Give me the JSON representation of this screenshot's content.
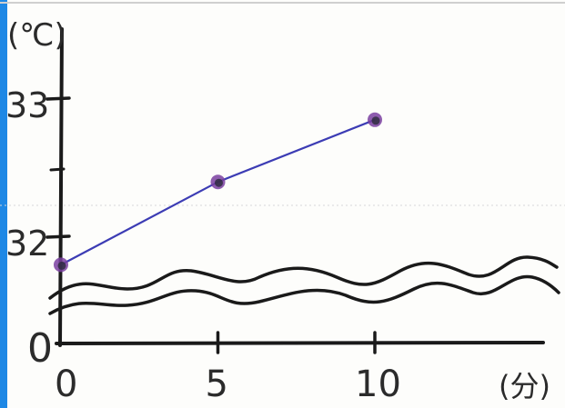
{
  "chart_data": {
    "type": "line",
    "x": [
      0,
      5,
      10
    ],
    "y": [
      31.8,
      32.4,
      32.85
    ],
    "xlabel": "(分)",
    "ylabel": "(℃)",
    "x_ticks": [
      "0",
      "5",
      "10"
    ],
    "y_ticks": [
      "32",
      "33"
    ],
    "origin_label": "0",
    "xlim": [
      0,
      16
    ],
    "ylim": [
      31.7,
      33.2
    ],
    "axis_break": true,
    "grid": false
  },
  "colors": {
    "line": "#3c3cb4",
    "marker": "#7a3fa0",
    "marker_core": "#2a2a3a",
    "axis": "#1a1a1a",
    "left_edge": "#1e88e5",
    "top_edge": "#f2e34a"
  }
}
